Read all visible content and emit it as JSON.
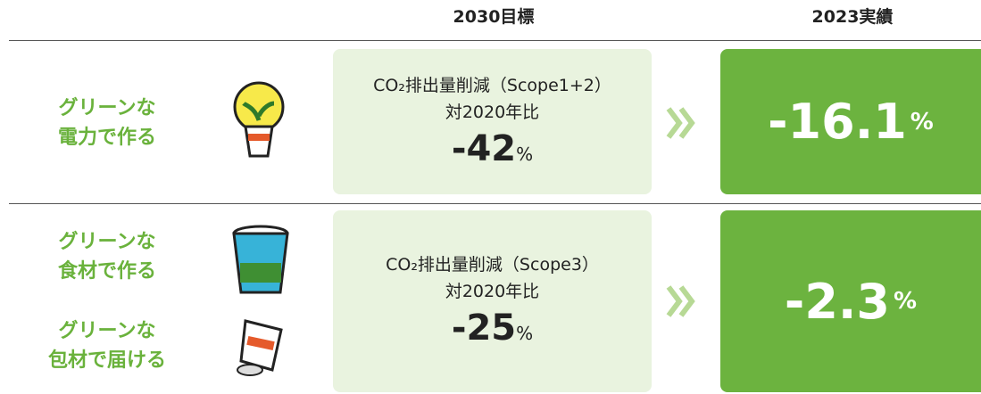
{
  "header": {
    "target": "2030目標",
    "actual": "2023実績"
  },
  "rows": [
    {
      "labels": [
        [
          "グリーンな",
          "電力で作る"
        ]
      ],
      "target": {
        "line1": "CO₂排出量削減（Scope1+2）",
        "line2": "対2020年比",
        "value": "-42",
        "unit": "%"
      },
      "actual": {
        "value": "-16.1",
        "unit": "%"
      }
    },
    {
      "labels": [
        [
          "グリーンな",
          "食材で作る"
        ],
        [
          "グリーンな",
          "包材で届ける"
        ]
      ],
      "target": {
        "line1": "CO₂排出量削減（Scope3）",
        "line2": "対2020年比",
        "value": "-25",
        "unit": "%"
      },
      "actual": {
        "value": "-2.3",
        "unit": "%"
      }
    }
  ]
}
